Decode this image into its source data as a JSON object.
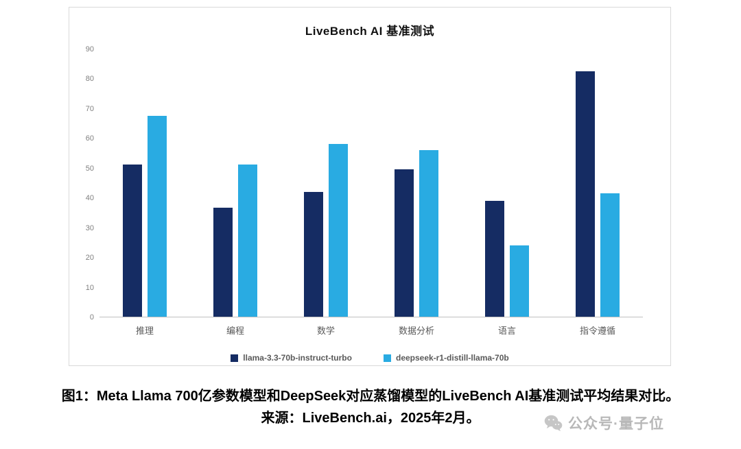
{
  "chart_data": {
    "type": "bar",
    "title": "LiveBench AI 基准测试",
    "categories": [
      "推理",
      "编程",
      "数学",
      "数据分析",
      "语言",
      "指令遵循"
    ],
    "series": [
      {
        "name": "llama-3.3-70b-instruct-turbo",
        "color": "#152c63",
        "values": [
          51,
          36.5,
          42,
          49.5,
          39,
          82.5
        ]
      },
      {
        "name": "deepseek-r1-distill-llama-70b",
        "color": "#29abe2",
        "values": [
          67.5,
          51,
          58,
          56,
          24,
          41.5
        ]
      }
    ],
    "xlabel": "",
    "ylabel": "",
    "ylim": [
      0,
      90
    ],
    "yticks": [
      0,
      10,
      20,
      30,
      40,
      50,
      60,
      70,
      80,
      90
    ],
    "grid": false,
    "legend_position": "bottom"
  },
  "caption": {
    "line1": "图1：Meta Llama 700亿参数模型和DeepSeek对应蒸馏模型的LiveBench AI基准测试平均结果对比。",
    "line2": "来源：LiveBench.ai，2025年2月。"
  },
  "watermark": {
    "icon": "wechat-icon",
    "text": "公众号·量子位"
  }
}
